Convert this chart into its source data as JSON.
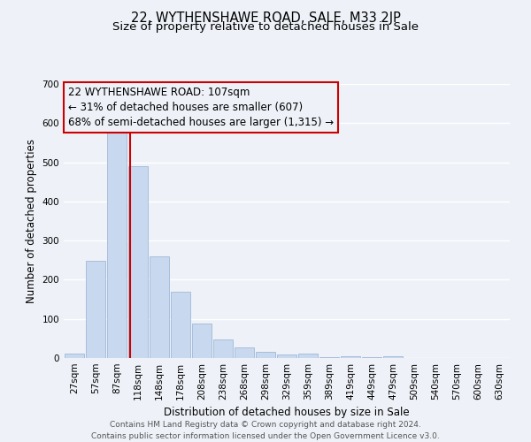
{
  "title_line1": "22, WYTHENSHAWE ROAD, SALE, M33 2JP",
  "title_line2": "Size of property relative to detached houses in Sale",
  "xlabel": "Distribution of detached houses by size in Sale",
  "ylabel": "Number of detached properties",
  "bar_color": "#c8d8ee",
  "bar_edge_color": "#a0b8d8",
  "background_color": "#eef2f8",
  "grid_color": "white",
  "bin_labels": [
    "27sqm",
    "57sqm",
    "87sqm",
    "118sqm",
    "148sqm",
    "178sqm",
    "208sqm",
    "238sqm",
    "268sqm",
    "298sqm",
    "329sqm",
    "359sqm",
    "389sqm",
    "419sqm",
    "449sqm",
    "479sqm",
    "509sqm",
    "540sqm",
    "570sqm",
    "600sqm",
    "630sqm"
  ],
  "bar_heights": [
    12,
    248,
    575,
    490,
    260,
    170,
    88,
    47,
    27,
    15,
    8,
    12,
    2,
    5,
    2,
    5,
    0,
    0,
    0,
    0,
    0
  ],
  "ylim": [
    0,
    700
  ],
  "yticks": [
    0,
    100,
    200,
    300,
    400,
    500,
    600,
    700
  ],
  "vline_position": 2.645,
  "annotation_title": "22 WYTHENSHAWE ROAD: 107sqm",
  "annotation_line1": "← 31% of detached houses are smaller (607)",
  "annotation_line2": "68% of semi-detached houses are larger (1,315) →",
  "vline_color": "#cc0000",
  "annotation_box_edge_color": "#cc0000",
  "footer_line1": "Contains HM Land Registry data © Crown copyright and database right 2024.",
  "footer_line2": "Contains public sector information licensed under the Open Government Licence v3.0.",
  "title_fontsize": 10.5,
  "subtitle_fontsize": 9.5,
  "axis_label_fontsize": 8.5,
  "tick_fontsize": 7.5,
  "annotation_fontsize": 8.5,
  "footer_fontsize": 6.5
}
